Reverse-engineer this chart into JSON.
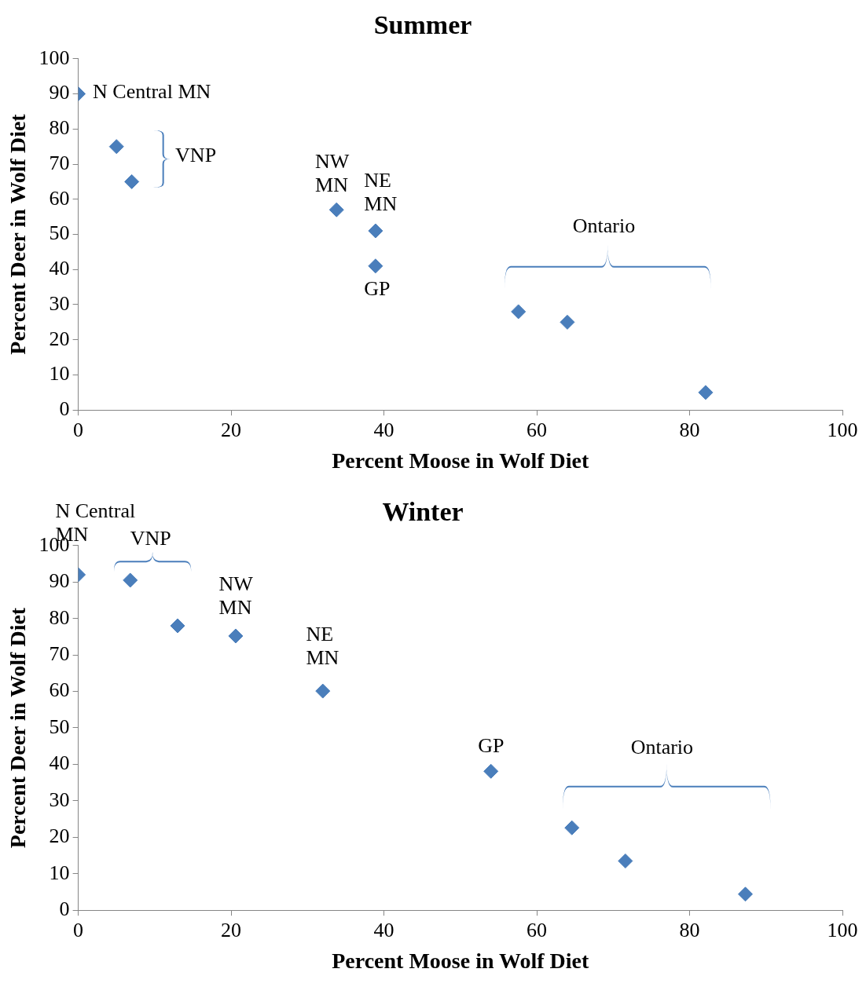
{
  "chart_data": [
    {
      "type": "scatter",
      "title": "Summer",
      "xlabel": "Percent Moose in Wolf Diet",
      "ylabel": "Percent Deer in Wolf Diet",
      "x": [
        0,
        5,
        7,
        33.8,
        38.9,
        38.9,
        57.6,
        64,
        82.1
      ],
      "values": [
        90,
        75,
        65,
        57,
        51,
        41,
        28,
        25,
        5
      ],
      "color": "#4a7ebb",
      "marker": "diamond",
      "grid": false,
      "legend": false,
      "xlim": [
        0,
        100
      ],
      "xticks": [
        0,
        20,
        40,
        60,
        80,
        100
      ],
      "ylim": [
        0,
        100
      ],
      "yticks": [
        0,
        10,
        20,
        30,
        40,
        50,
        60,
        70,
        80,
        90,
        100
      ],
      "annotations": [
        "N Central MN",
        "VNP",
        "NW\nMN",
        "NE\nMN",
        "GP",
        "Ontario"
      ]
    },
    {
      "type": "scatter",
      "title": "Winter",
      "xlabel": "Percent Moose in Wolf Diet",
      "ylabel": "Percent Deer in Wolf Diet",
      "x": [
        0,
        6.8,
        13,
        20.6,
        32,
        54,
        64.6,
        71.6,
        87.3
      ],
      "values": [
        92,
        90.5,
        78,
        75.2,
        60.1,
        38.1,
        22.6,
        13.5,
        4.4
      ],
      "color": "#4a7ebb",
      "marker": "diamond",
      "grid": false,
      "legend": false,
      "xlim": [
        0,
        100
      ],
      "xticks": [
        0,
        20,
        40,
        60,
        80,
        100
      ],
      "ylim": [
        0,
        100
      ],
      "yticks": [
        0,
        10,
        20,
        30,
        40,
        50,
        60,
        70,
        80,
        90,
        100
      ],
      "annotations": [
        "N Central\nMN",
        "VNP",
        "NW\nMN",
        "NE\nMN",
        "GP",
        "Ontario"
      ]
    }
  ]
}
